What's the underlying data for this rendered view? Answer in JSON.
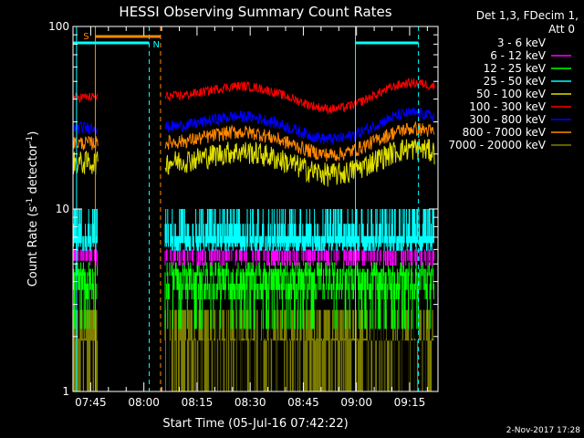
{
  "chart_data": {
    "type": "line",
    "title": "HESSI Observing Summary Count Rates",
    "xlabel": "Start Time (05-Jul-16 07:42:22)",
    "ylabel_main": "Count Rate (s",
    "ylabel_sup1": "-1",
    "ylabel_mid": " detector",
    "ylabel_sup2": "-1",
    "ylabel_end": ")",
    "yscale": "log",
    "ylim": [
      1,
      100
    ],
    "xlim": [
      "07:40",
      "09:23"
    ],
    "x_ticks": [
      "07:45",
      "08:00",
      "08:15",
      "08:30",
      "08:45",
      "09:00",
      "09:15"
    ],
    "y_tick_labels": [
      "1",
      "10",
      "100"
    ],
    "grid": false,
    "legend_position": "top-right",
    "legend_header": [
      "Det 1,3, FDecim 1,",
      "Att 0"
    ],
    "series": [
      {
        "name": "3 - 6 keV",
        "color": "#000000",
        "values_desc": "~1-2 counts/s"
      },
      {
        "name": "6 - 12 keV",
        "color": "#ff00ff",
        "values_desc": "~5.5 counts/s"
      },
      {
        "name": "12 - 25 keV",
        "color": "#00ff00",
        "values_desc": "~4-5 counts/s"
      },
      {
        "name": "25 - 50 keV",
        "color": "#00ffff",
        "values_desc": "~6.5 counts/s"
      },
      {
        "name": "50 - 100 keV",
        "color": "#e0e000",
        "values_desc": "~17-20 counts/s"
      },
      {
        "name": "100 - 300 keV",
        "color": "#ff0000",
        "values_desc": "~40-55 counts/s"
      },
      {
        "name": "300 - 800 keV",
        "color": "#0000ff",
        "values_desc": "~28-35 counts/s"
      },
      {
        "name": "800 - 7000 keV",
        "color": "#ff8800",
        "values_desc": "~22-28 counts/s"
      },
      {
        "name": "7000 - 20000 keV",
        "color": "#808000",
        "values_desc": "~1.5-2.5 counts/s"
      }
    ],
    "annotations": {
      "saa_label": "S",
      "night_label": "N"
    },
    "timestamp": "2-Nov-2017 17:28"
  }
}
